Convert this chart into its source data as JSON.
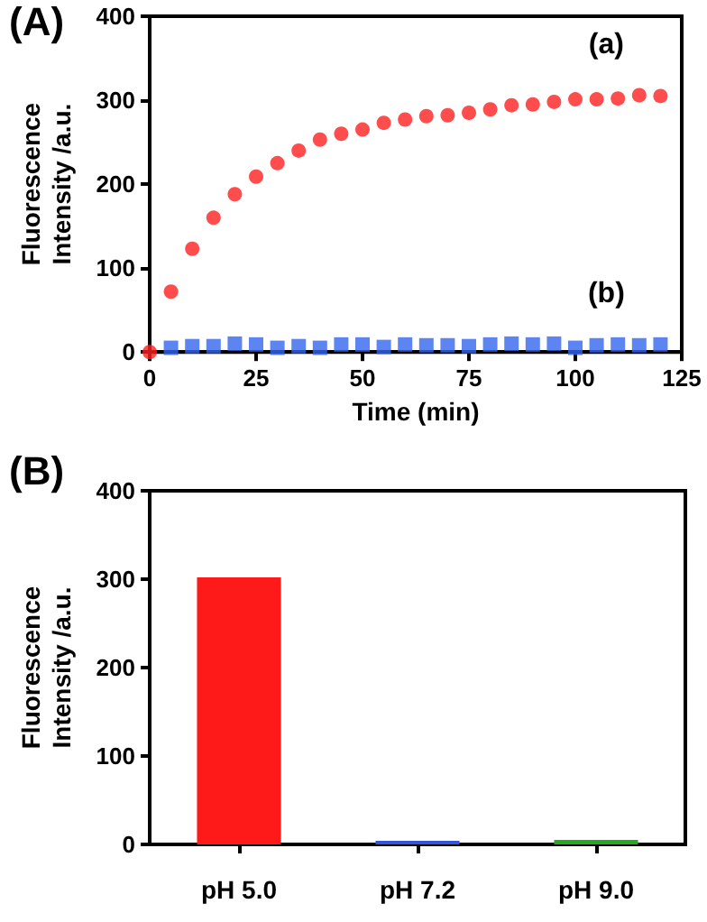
{
  "chart_data": [
    {
      "type": "scatter",
      "title": "(A)",
      "xlabel": "Time (min)",
      "ylabel": "Fluorescence\nIntensity /a.u.",
      "x": [
        0,
        5,
        10,
        15,
        20,
        25,
        30,
        35,
        40,
        45,
        50,
        55,
        60,
        65,
        70,
        75,
        80,
        85,
        90,
        95,
        100,
        105,
        110,
        115,
        120
      ],
      "series": [
        {
          "name": "(a)",
          "color": "#ff2020",
          "marker": "circle",
          "values": [
            0,
            72,
            123,
            160,
            188,
            209,
            225,
            240,
            253,
            260,
            265,
            273,
            277,
            281,
            282,
            285,
            289,
            294,
            295,
            298,
            301,
            301,
            302,
            306,
            305
          ]
        },
        {
          "name": "(b)",
          "color": "#3366ee",
          "marker": "square",
          "values": [
            null,
            5,
            7,
            7,
            10,
            9,
            5,
            7,
            5,
            9,
            9,
            6,
            9,
            8,
            8,
            7,
            9,
            10,
            9,
            10,
            5,
            8,
            9,
            8,
            9
          ]
        }
      ],
      "xlim": [
        0,
        125
      ],
      "xticks": [
        0,
        25,
        50,
        75,
        100,
        125
      ],
      "ylim": [
        0,
        400
      ],
      "yticks": [
        0,
        100,
        200,
        300,
        400
      ],
      "grid": false,
      "legend": false
    },
    {
      "type": "bar",
      "title": "(B)",
      "ylabel": "Fluorescence\nIntensity /a.u.",
      "categories": [
        "pH 5.0",
        "pH 7.2",
        "pH 9.0"
      ],
      "values": [
        302,
        4,
        5
      ],
      "colors": [
        "#ff1a1a",
        "#3355dd",
        "#22aa22"
      ],
      "ylim": [
        0,
        400
      ],
      "yticks": [
        0,
        100,
        200,
        300,
        400
      ],
      "grid": false,
      "legend": false
    }
  ]
}
